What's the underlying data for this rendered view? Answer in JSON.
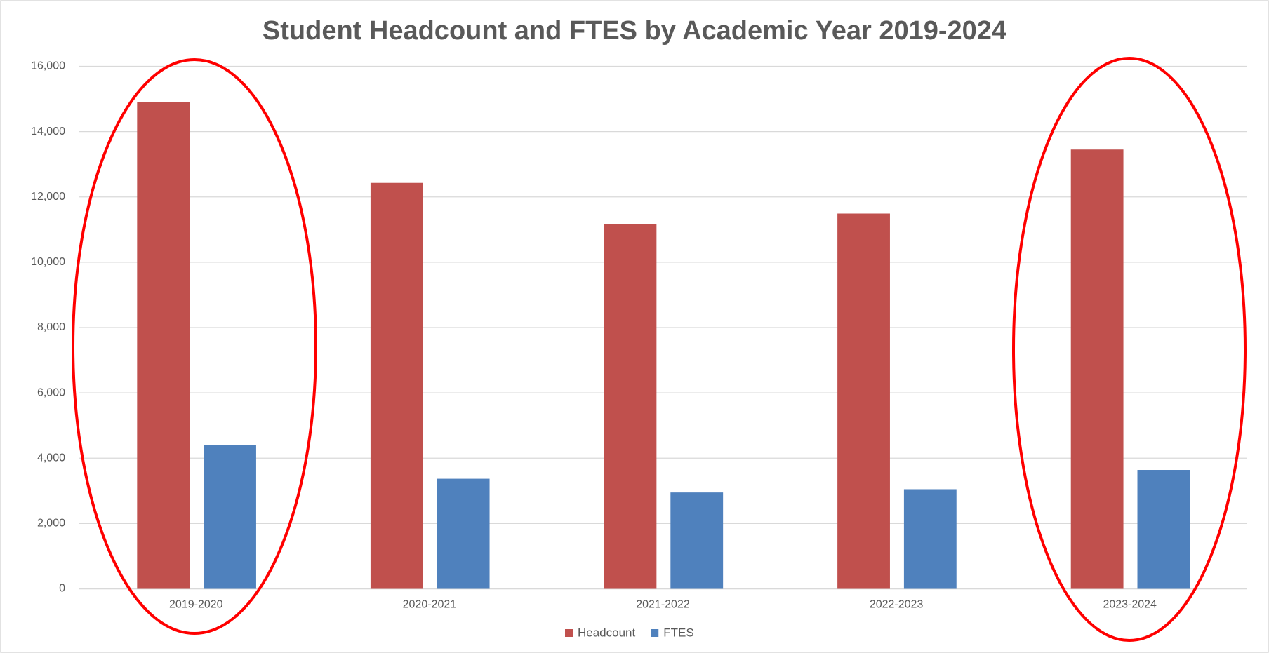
{
  "chart_data": {
    "type": "bar",
    "title": "Student Headcount and FTES by Academic Year 2019-2024",
    "categories": [
      "2019-2020",
      "2020-2021",
      "2021-2022",
      "2022-2023",
      "2023-2024"
    ],
    "series": [
      {
        "name": "Headcount",
        "color": "#c0504d",
        "values": [
          14910,
          12430,
          11170,
          11490,
          13450
        ]
      },
      {
        "name": "FTES",
        "color": "#4f81bd",
        "values": [
          4410,
          3370,
          2950,
          3050,
          3640
        ]
      }
    ],
    "ylim": [
      0,
      16000
    ],
    "yticks": [
      0,
      {
        "value": 2000,
        "label": "2,000"
      },
      {
        "value": 4000,
        "label": "4,000"
      },
      {
        "value": 6000,
        "label": "6,000"
      },
      {
        "value": 8000,
        "label": "8,000"
      },
      {
        "value": 10000,
        "label": "10,000"
      },
      {
        "value": 12000,
        "label": "12,000"
      },
      {
        "value": 14000,
        "label": "14,000"
      },
      {
        "value": 16000,
        "label": "16,000"
      }
    ],
    "grid": true,
    "legend": "bottom"
  }
}
